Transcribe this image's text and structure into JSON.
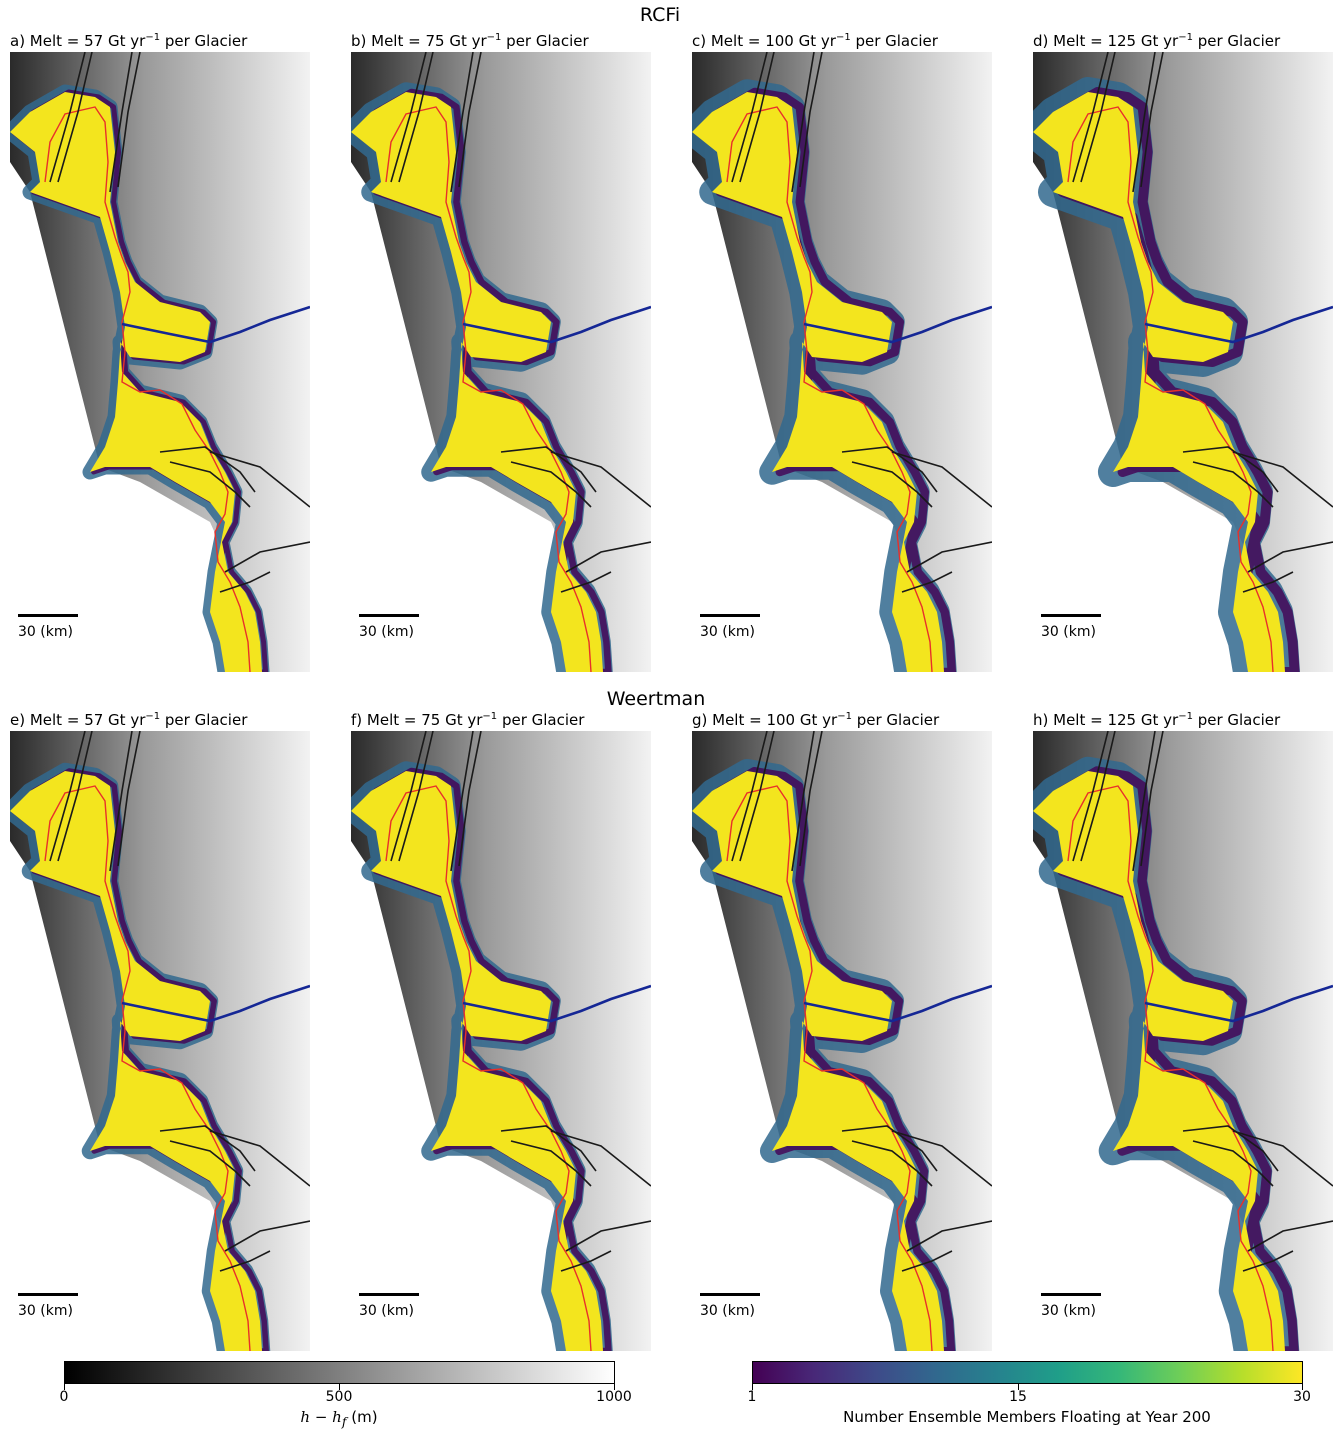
{
  "rows": [
    {
      "title": "RCFi",
      "panels": [
        {
          "prefix": "a) Melt = ",
          "value": "57",
          "unit": " Gt yr",
          "exp": "−1",
          "suffix": " per Glacier",
          "floating_extent": 0.3,
          "scale_label": "30 (km)"
        },
        {
          "prefix": "b) Melt = ",
          "value": "75",
          "unit": " Gt yr",
          "exp": "−1",
          "suffix": " per Glacier",
          "floating_extent": 0.45,
          "scale_label": "30 (km)"
        },
        {
          "prefix": "c) Melt = ",
          "value": "100",
          "unit": " Gt yr",
          "exp": "−1",
          "suffix": " per Glacier",
          "floating_extent": 0.65,
          "scale_label": "30 (km)"
        },
        {
          "prefix": "d) Melt = ",
          "value": "125",
          "unit": " Gt yr",
          "exp": "−1",
          "suffix": " per Glacier",
          "floating_extent": 0.8,
          "scale_label": "30 (km)"
        }
      ]
    },
    {
      "title": "Weertman",
      "panels": [
        {
          "prefix": "e) Melt = ",
          "value": "57",
          "unit": " Gt yr",
          "exp": "−1",
          "suffix": " per Glacier",
          "floating_extent": 0.35,
          "scale_label": "30 (km)"
        },
        {
          "prefix": "f) Melt = ",
          "value": "75",
          "unit": " Gt yr",
          "exp": "−1",
          "suffix": " per Glacier",
          "floating_extent": 0.45,
          "scale_label": "30 (km)"
        },
        {
          "prefix": "g) Melt = ",
          "value": "100",
          "unit": " Gt yr",
          "exp": "−1",
          "suffix": " per Glacier",
          "floating_extent": 0.6,
          "scale_label": "30 (km)"
        },
        {
          "prefix": "h) Melt = ",
          "value": "125",
          "unit": " Gt yr",
          "exp": "−1",
          "suffix": " per Glacier",
          "floating_extent": 0.75,
          "scale_label": "30 (km)"
        }
      ]
    }
  ],
  "colorbars": [
    {
      "colormap": "greys",
      "ticks": [
        "0",
        "500",
        "1000"
      ],
      "label_main": "h − h",
      "label_sub": "f",
      "label_unit": " (m)"
    },
    {
      "colormap": "viridis",
      "ticks": [
        "1",
        "15",
        "30"
      ],
      "label": "Number Ensemble Members Floating at Year 200"
    }
  ],
  "colors": {
    "floating_all": "#f3e51e",
    "grounding_line": "#e8302a",
    "flow_lines": "#1a1a1a",
    "basin_boundary": "#152795",
    "viridis": [
      "#440154",
      "#3b528b",
      "#21918c",
      "#5ec962",
      "#fde725"
    ],
    "greys": [
      "#000000",
      "#ffffff"
    ]
  }
}
